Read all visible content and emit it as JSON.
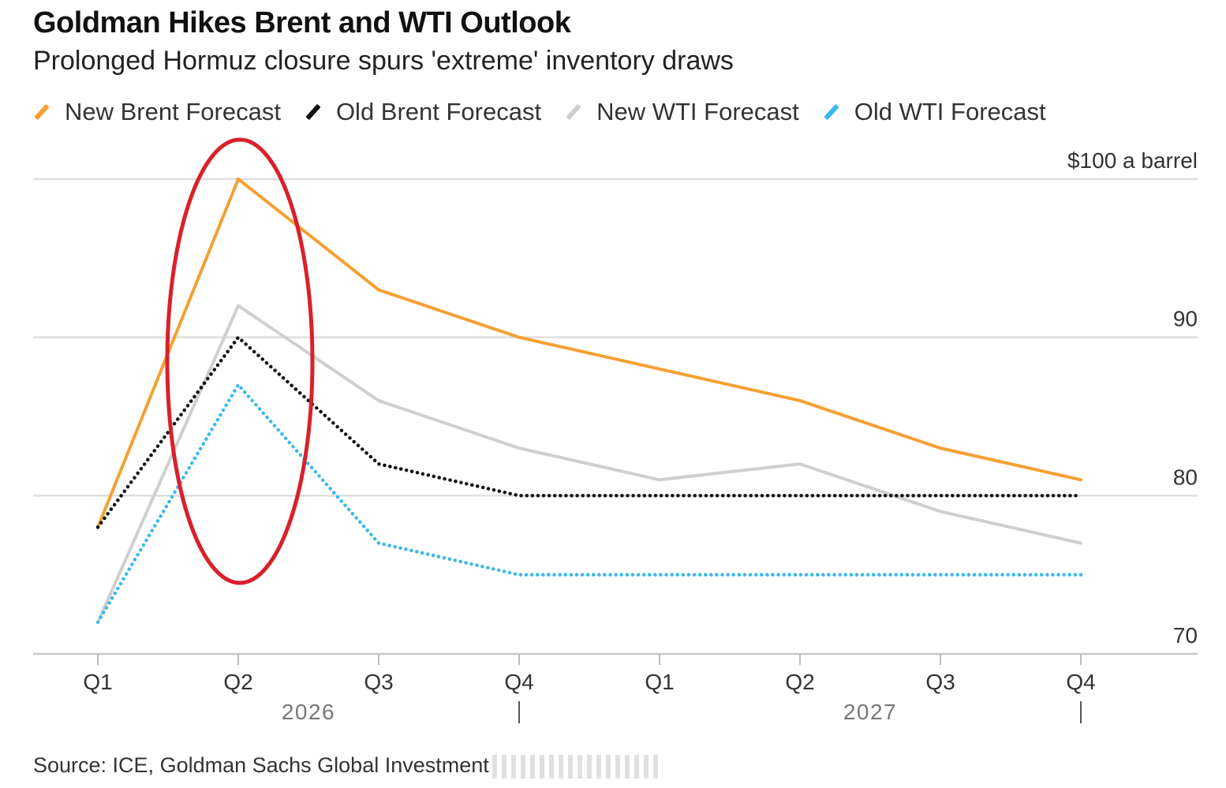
{
  "chart_data": {
    "type": "line",
    "title": "Goldman Hikes Brent and WTI Outlook",
    "subtitle": "Prolonged Hormuz closure spurs 'extreme' inventory draws",
    "x": [
      "Q1",
      "Q2",
      "Q3",
      "Q4",
      "Q1",
      "Q2",
      "Q3",
      "Q4"
    ],
    "year_labels": [
      {
        "label": "2026",
        "from_index": 0,
        "to_index": 3
      },
      {
        "label": "2027",
        "from_index": 4,
        "to_index": 7
      }
    ],
    "series": [
      {
        "name": "New Brent Forecast",
        "color": "#f5a033",
        "style": "solid",
        "values": [
          78,
          100,
          93,
          90,
          88,
          86,
          83,
          81
        ]
      },
      {
        "name": "Old Brent Forecast",
        "color": "#111111",
        "style": "dotted",
        "values": [
          78,
          90,
          82,
          80,
          80,
          80,
          80,
          80
        ]
      },
      {
        "name": "New WTI Forecast",
        "color": "#cfcfcf",
        "style": "solid",
        "values": [
          72,
          92,
          86,
          83,
          81,
          82,
          79,
          77
        ]
      },
      {
        "name": "Old WTI Forecast",
        "color": "#3bb8ec",
        "style": "dotted",
        "values": [
          72,
          87,
          77,
          75,
          75,
          75,
          75,
          75
        ]
      }
    ],
    "ylim": [
      70,
      100
    ],
    "yticks": [
      70,
      80,
      90,
      100
    ],
    "ytick_labels": [
      "70",
      "80",
      "90",
      "$100 a barrel"
    ],
    "grid": true,
    "legend": "top",
    "annotation": {
      "type": "ellipse",
      "color": "#d9202b",
      "around": "Q2 2026"
    },
    "source": "Source: ICE, Goldman Sachs Global Investment"
  }
}
